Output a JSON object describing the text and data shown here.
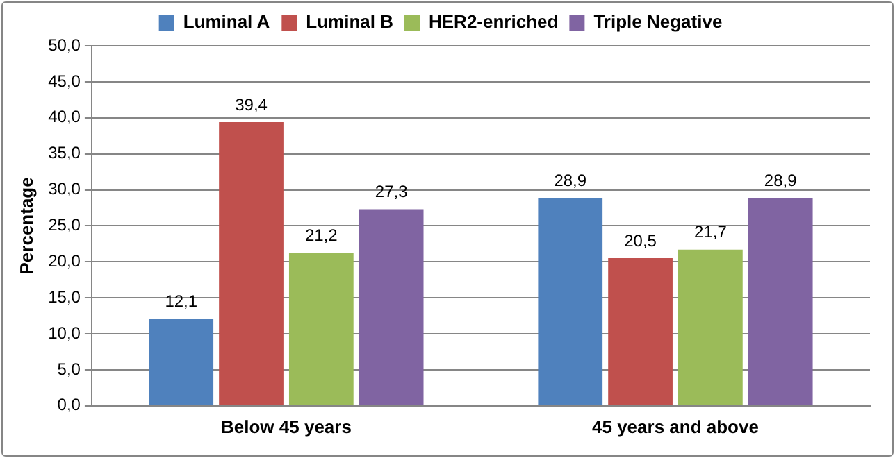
{
  "chart_data": {
    "type": "bar",
    "ylabel": "Percentage",
    "categories": [
      "Below 45 years",
      "45 years and above"
    ],
    "series": [
      {
        "name": "Luminal A",
        "color": "#4f81bd",
        "values": [
          12.1,
          28.9
        ],
        "value_labels": [
          "12,1",
          "28,9"
        ]
      },
      {
        "name": "Luminal B",
        "color": "#c0504d",
        "values": [
          39.4,
          20.5
        ],
        "value_labels": [
          "39,4",
          "20,5"
        ]
      },
      {
        "name": "HER2-enriched",
        "color": "#9bbb59",
        "values": [
          21.2,
          21.7
        ],
        "value_labels": [
          "21,2",
          "21,7"
        ]
      },
      {
        "name": "Triple Negative",
        "color": "#8064a2",
        "values": [
          27.3,
          28.9
        ],
        "value_labels": [
          "27,3",
          "28,9"
        ]
      }
    ],
    "ylim": [
      0,
      50
    ],
    "yticks": [
      {
        "value": 0,
        "label": "0,0"
      },
      {
        "value": 5,
        "label": "5,0"
      },
      {
        "value": 10,
        "label": "10,0"
      },
      {
        "value": 15,
        "label": "15,0"
      },
      {
        "value": 20,
        "label": "20,0"
      },
      {
        "value": 25,
        "label": "25,0"
      },
      {
        "value": 30,
        "label": "30,0"
      },
      {
        "value": 35,
        "label": "35,0"
      },
      {
        "value": 40,
        "label": "40,0"
      },
      {
        "value": 45,
        "label": "45,0"
      },
      {
        "value": 50,
        "label": "50,0"
      }
    ],
    "grid": "y",
    "legend": "top"
  }
}
